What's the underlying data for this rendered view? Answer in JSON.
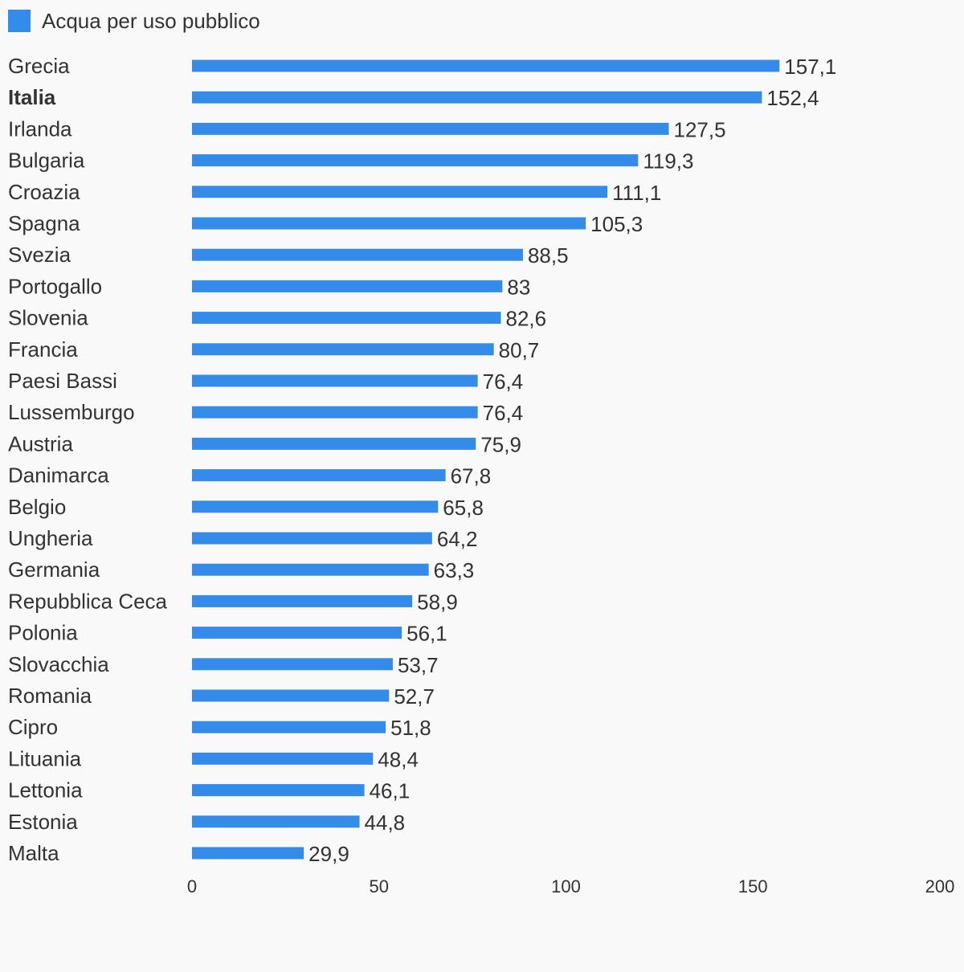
{
  "colors": {
    "bar": "#358bea",
    "background": "#f9f9f9",
    "text": "#333333"
  },
  "chart_data": {
    "type": "bar",
    "orientation": "horizontal",
    "series": [
      {
        "name": "Acqua per uso pubblico",
        "values": [
          157.1,
          152.4,
          127.5,
          119.3,
          111.1,
          105.3,
          88.5,
          83,
          82.6,
          80.7,
          76.4,
          76.4,
          75.9,
          67.8,
          65.8,
          64.2,
          63.3,
          58.9,
          56.1,
          53.7,
          52.7,
          51.8,
          48.4,
          46.1,
          44.8,
          29.9
        ]
      }
    ],
    "categories": [
      "Grecia",
      "Italia",
      "Irlanda",
      "Bulgaria",
      "Croazia",
      "Spagna",
      "Svezia",
      "Portogallo",
      "Slovenia",
      "Francia",
      "Paesi Bassi",
      "Lussemburgo",
      "Austria",
      "Danimarca",
      "Belgio",
      "Ungheria",
      "Germania",
      "Repubblica Ceca",
      "Polonia",
      "Slovacchia",
      "Romania",
      "Cipro",
      "Lituania",
      "Lettonia",
      "Estonia",
      "Malta"
    ],
    "value_labels": [
      "157,1",
      "152,4",
      "127,5",
      "119,3",
      "111,1",
      "105,3",
      "88,5",
      "83",
      "82,6",
      "80,7",
      "76,4",
      "76,4",
      "75,9",
      "67,8",
      "65,8",
      "64,2",
      "63,3",
      "58,9",
      "56,1",
      "53,7",
      "52,7",
      "51,8",
      "48,4",
      "46,1",
      "44,8",
      "29,9"
    ],
    "highlighted_category": "Italia",
    "xlim": [
      0,
      200
    ],
    "xticks": [
      0,
      50,
      100,
      150,
      200
    ],
    "xtick_labels": [
      "0",
      "50",
      "100",
      "150",
      "200"
    ],
    "legend_position": "top-left",
    "grid": false
  }
}
